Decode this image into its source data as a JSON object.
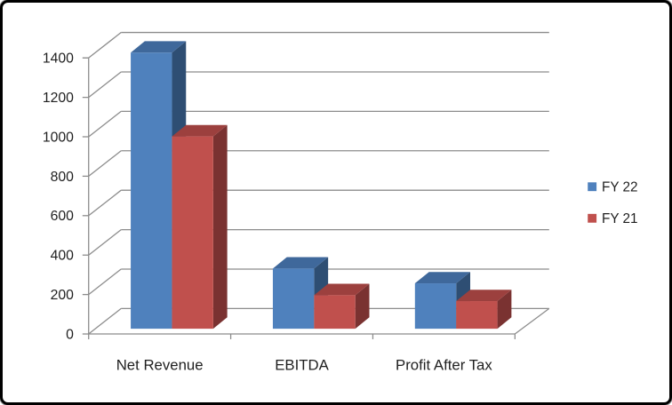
{
  "chart_data": {
    "type": "bar",
    "variant": "3d-clustered-column",
    "title": "",
    "xlabel": "",
    "ylabel": "",
    "categories": [
      "Net Revenue",
      "EBITDA",
      "Profit After Tax"
    ],
    "series": [
      {
        "name": "FY 22",
        "values": [
          1400,
          305,
          230
        ],
        "color": "#4F81BD",
        "color_top": "#3F689B",
        "color_side": "#2E4E73"
      },
      {
        "name": "FY 21",
        "values": [
          975,
          170,
          140
        ],
        "color": "#C0504D",
        "color_top": "#9C403E",
        "color_side": "#7A3231"
      }
    ],
    "ylim": [
      0,
      1400
    ],
    "ytick_step": 200,
    "ytick_labels": [
      "0",
      "200",
      "400",
      "600",
      "800",
      "1000",
      "1200",
      "1400"
    ],
    "grid": true,
    "legend_position": "right",
    "colors": {
      "gridline": "#8C8C8C",
      "axis": "#8C8C8C",
      "text": "#1F1F1F",
      "background": "#FFFFFF",
      "frame_border": "#000000"
    }
  },
  "legend": {
    "items": [
      {
        "label": "FY 22",
        "color": "#4F81BD"
      },
      {
        "label": "FY 21",
        "color": "#C0504D"
      }
    ]
  }
}
